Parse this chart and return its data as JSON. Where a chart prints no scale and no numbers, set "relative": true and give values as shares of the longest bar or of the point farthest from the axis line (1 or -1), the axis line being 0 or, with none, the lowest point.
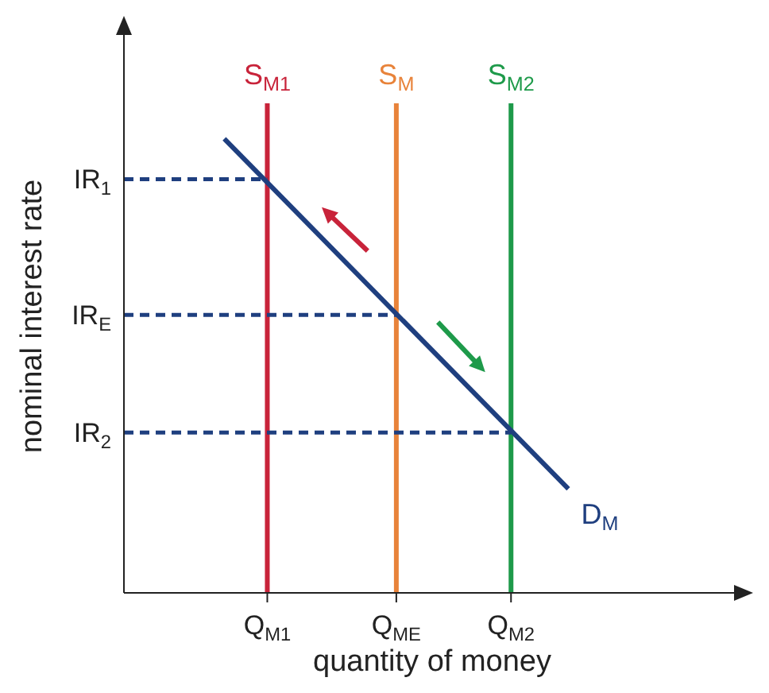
{
  "chart_data": {
    "type": "line",
    "relative": true,
    "xlabel": "quantity of money",
    "ylabel": "nominal interest rate",
    "categories": [
      null,
      null,
      null,
      null,
      null,
      null,
      null,
      null,
      null,
      null,
      "Q$_{M1}$",
      null,
      null,
      null,
      null,
      null,
      null,
      null,
      null,
      "Q$_{ME}$",
      null,
      null,
      null,
      null,
      null,
      null,
      null,
      "Q$_{M2}$",
      null,
      null,
      null,
      null,
      null,
      null,
      null,
      null,
      null,
      null,
      null,
      null,
      null,
      null,
      null,
      null
    ],
    "grid": false,
    "legend": false,
    "marker": "none",
    "ref_lines": [
      {
        "axis": "x",
        "value": "Q$_{M1}$",
        "label": "S$_{M1}$",
        "color": "#c8233a",
        "line_style": "solid"
      },
      {
        "axis": "x",
        "value": "Q$_{ME}$",
        "label": "S$_{M}$",
        "color": "#e8833a",
        "line_style": "solid"
      },
      {
        "axis": "x",
        "value": "Q$_{M2}$",
        "label": "S$_{M2}$",
        "color": "#1e9a4a",
        "line_style": "solid"
      }
    ],
    "series": [
      {
        "name": "D$_{M}$",
        "color": "#1f3f7f",
        "line_style": "solid",
        "values": [
          null,
          null,
          null,
          null,
          null,
          null,
          null,
          1,
          null,
          null,
          null,
          null,
          null,
          null,
          null,
          null,
          null,
          null,
          null,
          null,
          null,
          null,
          null,
          null,
          null,
          null,
          null,
          null,
          null,
          null,
          null,
          0.229,
          null,
          null,
          null,
          null,
          null,
          null,
          null,
          null,
          null,
          null,
          null,
          null
        ]
      },
      {
        "name": "IR$_{1}$",
        "color": "#1f3f7f",
        "line_style": "dashed",
        "values": [
          0.911,
          null,
          null,
          null,
          null,
          null,
          null,
          null,
          null,
          null,
          0.911,
          null,
          null,
          null,
          null,
          null,
          null,
          null,
          null,
          null,
          null,
          null,
          null,
          null,
          null,
          null,
          null,
          null,
          null,
          null,
          null,
          null,
          null,
          null,
          null,
          null,
          null,
          null,
          null,
          null,
          null,
          null,
          null,
          null
        ]
      },
      {
        "name": "IR$_{E}$",
        "color": "#1f3f7f",
        "line_style": "dashed",
        "values": [
          0.612,
          null,
          null,
          null,
          null,
          null,
          null,
          null,
          null,
          null,
          null,
          null,
          null,
          null,
          null,
          null,
          null,
          null,
          null,
          0.612,
          null,
          null,
          null,
          null,
          null,
          null,
          null,
          null,
          null,
          null,
          null,
          null,
          null,
          null,
          null,
          null,
          null,
          null,
          null,
          null,
          null,
          null,
          null,
          null
        ]
      },
      {
        "name": "IR$_{2}$",
        "color": "#1f3f7f",
        "line_style": "dashed",
        "values": [
          0.353,
          null,
          null,
          null,
          null,
          null,
          null,
          null,
          null,
          null,
          null,
          null,
          null,
          null,
          null,
          null,
          null,
          null,
          null,
          null,
          null,
          null,
          null,
          null,
          null,
          null,
          null,
          0.353,
          null,
          null,
          null,
          null,
          null,
          null,
          null,
          null,
          null,
          null,
          null,
          null,
          null,
          null,
          null,
          null
        ]
      }
    ]
  }
}
